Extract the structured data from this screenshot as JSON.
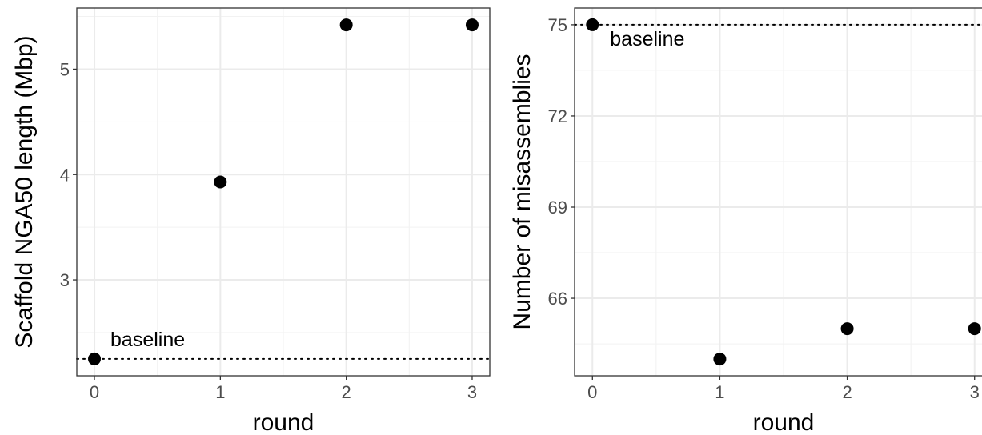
{
  "chart_data": [
    {
      "type": "scatter",
      "title": "",
      "xlabel": "round",
      "ylabel": "Scaffold NGA50 length (Mbp)",
      "x": [
        0,
        1,
        2,
        3
      ],
      "y": [
        2.25,
        3.93,
        5.42,
        5.42
      ],
      "xticks": [
        "0",
        "1",
        "2",
        "3"
      ],
      "yticks": [
        "3",
        "4",
        "5"
      ],
      "xlim": [
        -0.14,
        3.14
      ],
      "ylim": [
        2.09,
        5.58
      ],
      "baseline": {
        "value": 2.25,
        "label": "baseline",
        "style": "dotted"
      },
      "grid": true,
      "point_color": "#000000"
    },
    {
      "type": "scatter",
      "title": "",
      "xlabel": "round",
      "ylabel": "Number of misassemblies",
      "x": [
        0,
        1,
        2,
        3
      ],
      "y": [
        75,
        64,
        65,
        65
      ],
      "xticks": [
        "0",
        "1",
        "2",
        "3"
      ],
      "yticks": [
        "66",
        "69",
        "72",
        "75"
      ],
      "xlim": [
        -0.14,
        3.14
      ],
      "ylim": [
        63.45,
        75.55
      ],
      "baseline": {
        "value": 75,
        "label": "baseline",
        "style": "dotted"
      },
      "grid": true,
      "point_color": "#000000"
    }
  ]
}
